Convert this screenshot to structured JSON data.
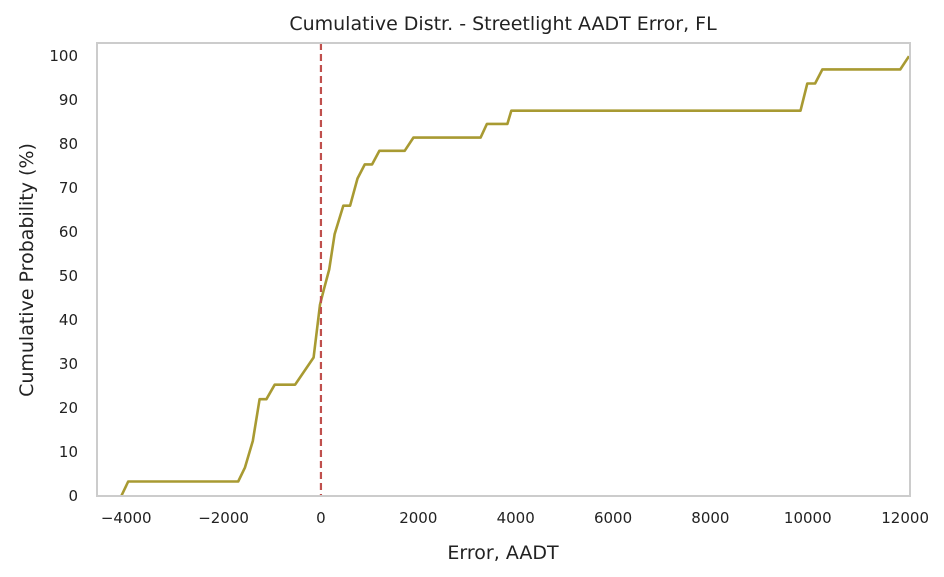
{
  "chart_data": {
    "type": "line",
    "title": "Cumulative Distr. - Streetlight AADT Error, FL",
    "xlabel": "Error, AADT",
    "ylabel": "Cumulative Probability (%)",
    "xlim": [
      -4600,
      12100
    ],
    "ylim": [
      0,
      103
    ],
    "xticks": [
      -4000,
      -2000,
      0,
      2000,
      4000,
      6000,
      8000,
      10000,
      12000
    ],
    "xtick_labels": [
      "−4000",
      "−2000",
      "0",
      "2000",
      "4000",
      "6000",
      "8000",
      "10000",
      "12000"
    ],
    "yticks": [
      0,
      10,
      20,
      30,
      40,
      50,
      60,
      70,
      80,
      90,
      100
    ],
    "ytick_labels": [
      "0",
      "10",
      "20",
      "30",
      "40",
      "50",
      "60",
      "70",
      "80",
      "90",
      "100"
    ],
    "grid": false,
    "series": [
      {
        "color": "#a89a32",
        "x": [
          -4100,
          -3960,
          -1700,
          -1560,
          -1400,
          -1260,
          -1120,
          -950,
          -800,
          -530,
          -150,
          -20,
          60,
          170,
          280,
          460,
          600,
          750,
          900,
          1050,
          1200,
          1450,
          1720,
          1900,
          2300,
          2800,
          3280,
          3410,
          3590,
          3830,
          3910,
          7000,
          9300,
          9850,
          9990,
          10150,
          10300,
          10700,
          11300,
          11900,
          12080
        ],
        "y": [
          0,
          3.3,
          3.3,
          6.5,
          12.5,
          22,
          22,
          25.3,
          25.3,
          25.3,
          31.5,
          43.5,
          47,
          51.5,
          59.5,
          66,
          66,
          72.2,
          75.4,
          75.4,
          78.5,
          78.5,
          78.5,
          81.5,
          81.5,
          81.5,
          81.5,
          84.6,
          84.6,
          84.6,
          87.6,
          87.6,
          87.6,
          87.6,
          93.8,
          93.8,
          97,
          97,
          97,
          97,
          100
        ]
      }
    ],
    "reference_line": {
      "x": 0,
      "style": "dashed",
      "color": "#c0504d"
    }
  }
}
